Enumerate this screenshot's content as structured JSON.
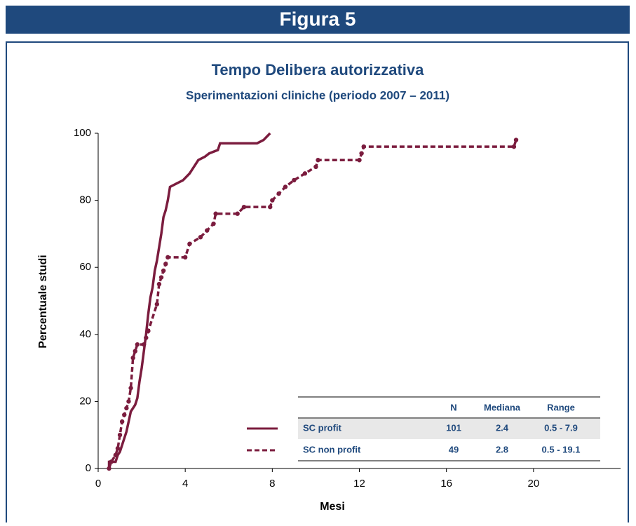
{
  "header": "Figura 5",
  "chart_data": {
    "type": "line",
    "title": "Tempo Delibera autorizzativa",
    "subtitle": "Sperimentazioni cliniche (periodo 2007 – 2011)",
    "x_label": "Mesi",
    "y_label": "Percentuale studi",
    "xlim": [
      0,
      24
    ],
    "ylim": [
      0,
      100
    ],
    "xticks": [
      0,
      4,
      8,
      12,
      16,
      20
    ],
    "yticks": [
      0,
      20,
      40,
      60,
      80,
      100
    ],
    "series": [
      {
        "name": "SC profit",
        "color": "#7b1c3e",
        "dashed": false,
        "markers": false,
        "x": [
          0.5,
          0.5,
          0.8,
          0.9,
          1.0,
          1.1,
          1.2,
          1.3,
          1.4,
          1.5,
          1.7,
          1.8,
          1.9,
          2.0,
          2.1,
          2.2,
          2.3,
          2.4,
          2.5,
          2.6,
          2.7,
          2.8,
          2.9,
          3.0,
          3.1,
          3.2,
          3.3,
          3.6,
          3.9,
          4.2,
          4.4,
          4.6,
          4.9,
          5.1,
          5.5,
          5.6,
          7.3,
          7.6,
          7.9
        ],
        "values": [
          0,
          2,
          2,
          4,
          5,
          7,
          9,
          11,
          14,
          17,
          19,
          21,
          26,
          30,
          35,
          40,
          46,
          51,
          54,
          59,
          62,
          66,
          70,
          75,
          77,
          80,
          84,
          85,
          86,
          88,
          90,
          92,
          93,
          94,
          95,
          97,
          97,
          98,
          100
        ]
      },
      {
        "name": "SC non profit",
        "color": "#7b1c3e",
        "dashed": true,
        "markers": true,
        "x": [
          0.5,
          0.6,
          0.8,
          0.9,
          1.0,
          1.1,
          1.2,
          1.3,
          1.4,
          1.5,
          1.6,
          1.7,
          1.8,
          2.1,
          2.2,
          2.3,
          2.7,
          2.8,
          2.9,
          3.0,
          3.1,
          3.2,
          4.0,
          4.2,
          4.7,
          5.0,
          5.3,
          5.4,
          6.4,
          6.7,
          7.9,
          8.0,
          8.3,
          8.6,
          9.0,
          9.5,
          10.0,
          10.1,
          12.0,
          12.1,
          12.2,
          19.1,
          19.2
        ],
        "values": [
          0,
          2,
          4,
          6,
          10,
          14,
          16,
          18,
          20,
          24,
          33,
          35,
          37,
          37,
          39,
          41,
          49,
          55,
          57,
          59,
          61,
          63,
          63,
          67,
          69,
          71,
          73,
          76,
          76,
          78,
          78,
          80,
          82,
          84,
          86,
          88,
          90,
          92,
          92,
          94,
          96,
          96,
          98
        ]
      }
    ],
    "table": {
      "columns": [
        "N",
        "Mediana",
        "Range"
      ],
      "rows": [
        [
          101,
          2.4,
          "0.5 - 7.9"
        ],
        [
          49,
          2.8,
          "0.5 - 19.1"
        ]
      ]
    }
  }
}
